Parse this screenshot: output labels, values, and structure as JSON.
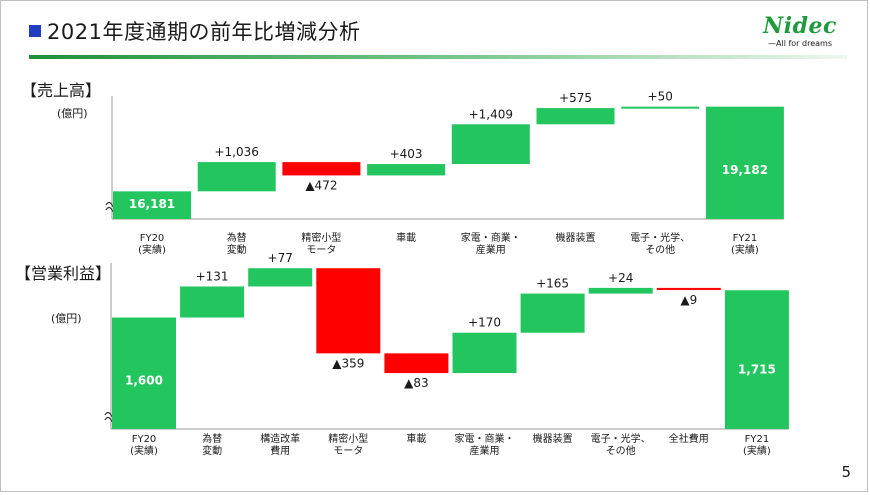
{
  "header": {
    "title": "2021年度通期の前年比増減分析",
    "logo_word": "Nidec",
    "logo_tagline": "—All for dreams",
    "accent_color": "#1f3fbf"
  },
  "colors": {
    "increase": "#22c55e",
    "decrease": "#ff0000",
    "total": "#22c55e",
    "value_label_on_bar": "#ffffff"
  },
  "page_number": "5",
  "chart_data": [
    {
      "type": "bar",
      "subtype": "waterfall",
      "title": "【売上高】",
      "unit": "(億円)",
      "y_axis_break": true,
      "categories": [
        [
          "FY20",
          "(実績)"
        ],
        [
          "為替",
          "変動"
        ],
        [
          "精密小型",
          "モータ"
        ],
        [
          "車載"
        ],
        [
          "家電・商業・",
          "産業用"
        ],
        [
          "機器装置"
        ],
        [
          "電子・光学、",
          "その他"
        ],
        [
          "FY21",
          "(実績)"
        ]
      ],
      "steps": [
        {
          "kind": "total",
          "value": 16181,
          "label": "16,181"
        },
        {
          "kind": "delta",
          "value": 1036,
          "label": "+1,036"
        },
        {
          "kind": "delta",
          "value": -472,
          "label": "▲472"
        },
        {
          "kind": "delta",
          "value": 403,
          "label": "+403"
        },
        {
          "kind": "delta",
          "value": 1409,
          "label": "+1,409"
        },
        {
          "kind": "delta",
          "value": 575,
          "label": "+575"
        },
        {
          "kind": "delta",
          "value": 50,
          "label": "+50"
        },
        {
          "kind": "total",
          "value": 19182,
          "label": "19,182"
        }
      ],
      "ylim": [
        15200,
        19560
      ]
    },
    {
      "type": "bar",
      "subtype": "waterfall",
      "title": "【営業利益】",
      "unit": "(億円)",
      "y_axis_break": true,
      "categories": [
        [
          "FY20",
          "(実績)"
        ],
        [
          "為替",
          "変動"
        ],
        [
          "構造改革",
          "費用"
        ],
        [
          "精密小型",
          "モータ"
        ],
        [
          "車載"
        ],
        [
          "家電・商業・",
          "産業用"
        ],
        [
          "機器装置"
        ],
        [
          "電子・光学、",
          "その他"
        ],
        [
          "全社費用"
        ],
        [
          "FY21",
          "(実績)"
        ]
      ],
      "steps": [
        {
          "kind": "total",
          "value": 1600,
          "label": "1,600"
        },
        {
          "kind": "delta",
          "value": 131,
          "label": "+131"
        },
        {
          "kind": "delta",
          "value": 77,
          "label": "+77"
        },
        {
          "kind": "delta",
          "value": -359,
          "label": "▲359"
        },
        {
          "kind": "delta",
          "value": -83,
          "label": "▲83"
        },
        {
          "kind": "delta",
          "value": 170,
          "label": "+170"
        },
        {
          "kind": "delta",
          "value": 165,
          "label": "+165"
        },
        {
          "kind": "delta",
          "value": 24,
          "label": "+24"
        },
        {
          "kind": "delta",
          "value": -9,
          "label": "▲9"
        },
        {
          "kind": "total",
          "value": 1715,
          "label": "1,715"
        }
      ],
      "ylim": [
        1130,
        1830
      ]
    }
  ]
}
